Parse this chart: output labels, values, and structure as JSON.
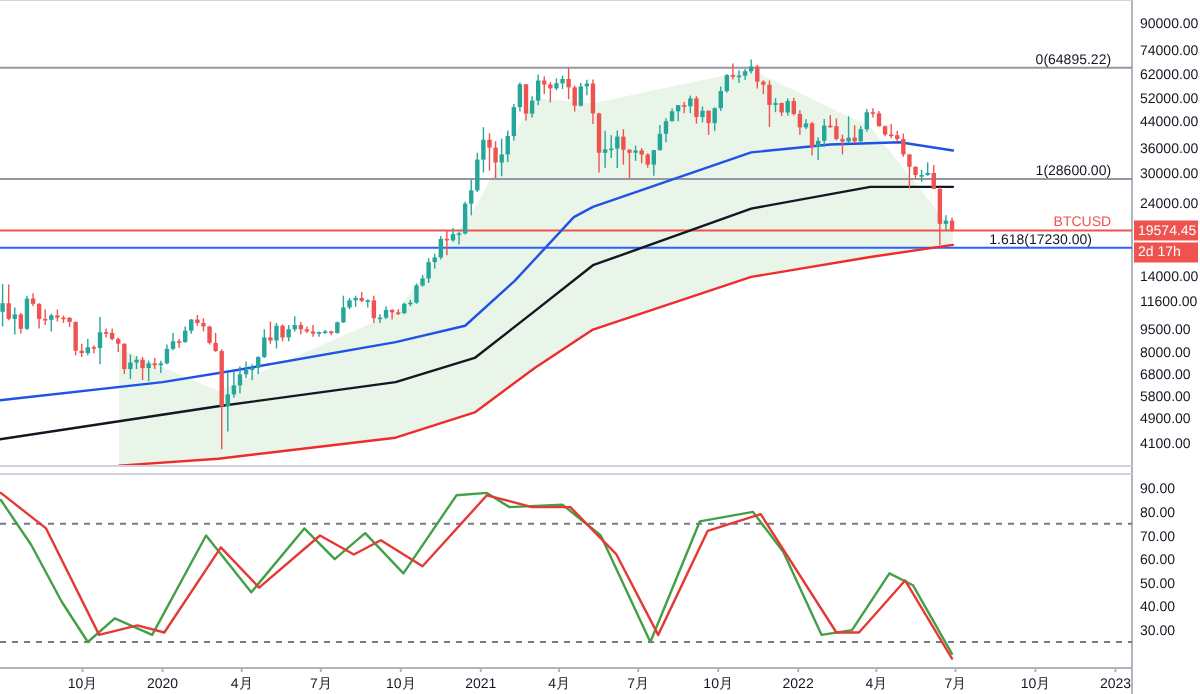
{
  "chart_data": [
    {
      "type": "candlestick",
      "log": true,
      "tick_labels": "y",
      "xlim": [
        "2019-06-28",
        "2023-01-20"
      ],
      "ylim": [
        3450,
        107000
      ],
      "yticks": [
        {
          "value": 90000,
          "label": "90000.00"
        },
        {
          "value": 74000,
          "label": "74000.00"
        },
        {
          "value": 62000,
          "label": "62000.00"
        },
        {
          "value": 52000,
          "label": "52000.00"
        },
        {
          "value": 44000,
          "label": "44000.00"
        },
        {
          "value": 36000,
          "label": "36000.00"
        },
        {
          "value": 30000,
          "label": "30000.00"
        },
        {
          "value": 24000,
          "label": "24000.00"
        },
        {
          "value": 14000,
          "label": "14000.00"
        },
        {
          "value": 11600,
          "label": "11600.00"
        },
        {
          "value": 9500,
          "label": "9500.00"
        },
        {
          "value": 8000,
          "label": "8000.00"
        },
        {
          "value": 6800,
          "label": "6800.00"
        },
        {
          "value": 5800,
          "label": "5800.00"
        },
        {
          "value": 4900,
          "label": "4900.00"
        },
        {
          "value": 4100,
          "label": "4100.00"
        }
      ],
      "x": [
        "2019-07-01",
        "2019-07-08",
        "2019-07-15",
        "2019-07-22",
        "2019-07-29",
        "2019-08-05",
        "2019-08-12",
        "2019-08-19",
        "2019-08-26",
        "2019-09-02",
        "2019-09-09",
        "2019-09-16",
        "2019-09-23",
        "2019-09-30",
        "2019-10-07",
        "2019-10-14",
        "2019-10-21",
        "2019-10-28",
        "2019-11-04",
        "2019-11-11",
        "2019-11-18",
        "2019-11-25",
        "2019-12-02",
        "2019-12-09",
        "2019-12-16",
        "2019-12-23",
        "2019-12-30",
        "2020-01-06",
        "2020-01-13",
        "2020-01-20",
        "2020-01-27",
        "2020-02-03",
        "2020-02-10",
        "2020-02-17",
        "2020-02-24",
        "2020-03-02",
        "2020-03-09",
        "2020-03-16",
        "2020-03-23",
        "2020-03-30",
        "2020-04-06",
        "2020-04-13",
        "2020-04-20",
        "2020-04-27",
        "2020-05-04",
        "2020-05-11",
        "2020-05-18",
        "2020-05-25",
        "2020-06-01",
        "2020-06-08",
        "2020-06-15",
        "2020-06-22",
        "2020-06-29",
        "2020-07-06",
        "2020-07-13",
        "2020-07-20",
        "2020-07-27",
        "2020-08-03",
        "2020-08-10",
        "2020-08-17",
        "2020-08-24",
        "2020-08-31",
        "2020-09-07",
        "2020-09-14",
        "2020-09-21",
        "2020-09-28",
        "2020-10-05",
        "2020-10-12",
        "2020-10-19",
        "2020-10-26",
        "2020-11-02",
        "2020-11-09",
        "2020-11-16",
        "2020-11-23",
        "2020-11-30",
        "2020-12-07",
        "2020-12-14",
        "2020-12-21",
        "2020-12-28",
        "2021-01-04",
        "2021-01-11",
        "2021-01-18",
        "2021-01-25",
        "2021-02-01",
        "2021-02-08",
        "2021-02-15",
        "2021-02-22",
        "2021-03-01",
        "2021-03-08",
        "2021-03-15",
        "2021-03-22",
        "2021-03-29",
        "2021-04-05",
        "2021-04-12",
        "2021-04-19",
        "2021-04-26",
        "2021-05-03",
        "2021-05-10",
        "2021-05-17",
        "2021-05-24",
        "2021-05-31",
        "2021-06-07",
        "2021-06-14",
        "2021-06-21",
        "2021-06-28",
        "2021-07-05",
        "2021-07-12",
        "2021-07-19",
        "2021-07-26",
        "2021-08-02",
        "2021-08-09",
        "2021-08-16",
        "2021-08-23",
        "2021-08-30",
        "2021-09-06",
        "2021-09-13",
        "2021-09-20",
        "2021-09-27",
        "2021-10-04",
        "2021-10-11",
        "2021-10-18",
        "2021-10-25",
        "2021-11-01",
        "2021-11-08",
        "2021-11-15",
        "2021-11-22",
        "2021-11-29",
        "2021-12-06",
        "2021-12-13",
        "2021-12-20",
        "2021-12-27",
        "2022-01-03",
        "2022-01-10",
        "2022-01-17",
        "2022-01-24",
        "2022-01-31",
        "2022-02-07",
        "2022-02-14",
        "2022-02-21",
        "2022-02-28",
        "2022-03-07",
        "2022-03-14",
        "2022-03-21",
        "2022-03-28",
        "2022-04-04",
        "2022-04-11",
        "2022-04-18",
        "2022-04-25",
        "2022-05-02",
        "2022-05-09",
        "2022-05-16",
        "2022-05-23",
        "2022-05-30",
        "2022-06-06",
        "2022-06-13",
        "2022-06-20",
        "2022-06-27"
      ],
      "ohlc": [
        [
          10750,
          13200,
          9650,
          11450
        ],
        [
          11450,
          13150,
          10100,
          10200
        ],
        [
          10200,
          11100,
          9100,
          10540
        ],
        [
          10540,
          10650,
          9160,
          9480
        ],
        [
          9480,
          12100,
          9400,
          11850
        ],
        [
          11850,
          12320,
          11200,
          11400
        ],
        [
          11400,
          11450,
          9500,
          10200
        ],
        [
          10200,
          10950,
          9750,
          10130
        ],
        [
          10130,
          10600,
          9300,
          10470
        ],
        [
          10470,
          10930,
          10000,
          10300
        ],
        [
          10300,
          10450,
          9900,
          10280
        ],
        [
          10280,
          10350,
          9600,
          9980
        ],
        [
          9980,
          10000,
          7800,
          8070
        ],
        [
          8070,
          8500,
          7700,
          7930
        ],
        [
          7930,
          8800,
          7800,
          8280
        ],
        [
          8280,
          8400,
          7900,
          8230
        ],
        [
          8230,
          10350,
          7300,
          9250
        ],
        [
          9250,
          9500,
          8900,
          9200
        ],
        [
          9200,
          9500,
          8700,
          8800
        ],
        [
          8800,
          8900,
          8000,
          8500
        ],
        [
          8500,
          8500,
          6800,
          7050
        ],
        [
          7050,
          7850,
          6550,
          7400
        ],
        [
          7400,
          7750,
          7050,
          7550
        ],
        [
          7550,
          7700,
          6500,
          7100
        ],
        [
          7100,
          7500,
          6450,
          7350
        ],
        [
          7350,
          7650,
          7050,
          7250
        ],
        [
          7250,
          7500,
          6850,
          7350
        ],
        [
          7350,
          8450,
          7300,
          8180
        ],
        [
          8180,
          9200,
          8100,
          8650
        ],
        [
          8650,
          8800,
          8250,
          8600
        ],
        [
          8600,
          9650,
          8550,
          9350
        ],
        [
          9350,
          10200,
          9150,
          10150
        ],
        [
          10150,
          10500,
          9700,
          9900
        ],
        [
          9900,
          10250,
          9300,
          9650
        ],
        [
          9650,
          9700,
          8450,
          8550
        ],
        [
          8550,
          9200,
          8000,
          8050
        ],
        [
          8050,
          8150,
          3900,
          5350
        ],
        [
          5350,
          6900,
          4450,
          5850
        ],
        [
          5850,
          6950,
          5700,
          6250
        ],
        [
          6250,
          7200,
          5900,
          6780
        ],
        [
          6780,
          7450,
          6600,
          7000
        ],
        [
          7000,
          7300,
          6500,
          7120
        ],
        [
          7120,
          7750,
          6800,
          7700
        ],
        [
          7700,
          9450,
          7650,
          8900
        ],
        [
          8900,
          10000,
          8500,
          8700
        ],
        [
          8700,
          9900,
          8200,
          9700
        ],
        [
          9700,
          9800,
          8650,
          8900
        ],
        [
          8900,
          9750,
          8650,
          9450
        ],
        [
          9450,
          10400,
          9300,
          9750
        ],
        [
          9750,
          9980,
          9100,
          9450
        ],
        [
          9450,
          9650,
          9200,
          9300
        ],
        [
          9300,
          9750,
          8950,
          9150
        ],
        [
          9150,
          9300,
          8950,
          9250
        ],
        [
          9250,
          9400,
          9150,
          9300
        ],
        [
          9300,
          9350,
          9050,
          9200
        ],
        [
          9200,
          10000,
          9150,
          9950
        ],
        [
          9950,
          12100,
          9900,
          11100
        ],
        [
          11100,
          11900,
          10950,
          11700
        ],
        [
          11700,
          12100,
          11150,
          11900
        ],
        [
          11900,
          12450,
          11550,
          11650
        ],
        [
          11650,
          11800,
          11100,
          11700
        ],
        [
          11700,
          12100,
          9900,
          10250
        ],
        [
          10250,
          10550,
          9900,
          10300
        ],
        [
          10300,
          11200,
          10200,
          10900
        ],
        [
          10900,
          10950,
          10150,
          10700
        ],
        [
          10700,
          10950,
          10500,
          10650
        ],
        [
          10650,
          11500,
          10550,
          11400
        ],
        [
          11400,
          11750,
          11200,
          11500
        ],
        [
          11500,
          13250,
          11400,
          13050
        ],
        [
          13050,
          14100,
          12950,
          13750
        ],
        [
          13750,
          15950,
          13300,
          15500
        ],
        [
          15500,
          16500,
          14800,
          16050
        ],
        [
          16050,
          18800,
          15800,
          18400
        ],
        [
          18400,
          19500,
          16300,
          18200
        ],
        [
          18200,
          19900,
          18000,
          19050
        ],
        [
          19050,
          19400,
          17650,
          19150
        ],
        [
          19150,
          24200,
          19000,
          23850
        ],
        [
          23850,
          28400,
          21900,
          26300
        ],
        [
          26300,
          34700,
          26000,
          33000
        ],
        [
          33000,
          41900,
          30000,
          38200
        ],
        [
          38200,
          40100,
          30400,
          36050
        ],
        [
          36050,
          37800,
          28800,
          32300
        ],
        [
          32300,
          38500,
          29200,
          34300
        ],
        [
          34300,
          40900,
          32400,
          39250
        ],
        [
          39250,
          49700,
          38000,
          48600
        ],
        [
          48600,
          58300,
          47000,
          57500
        ],
        [
          57500,
          57500,
          44000,
          46300
        ],
        [
          46300,
          52600,
          45000,
          51000
        ],
        [
          51000,
          61800,
          49300,
          59100
        ],
        [
          59100,
          61000,
          53500,
          57400
        ],
        [
          57400,
          58400,
          50300,
          55800
        ],
        [
          55800,
          60000,
          55000,
          57900
        ],
        [
          57900,
          61300,
          55500,
          59800
        ],
        [
          59800,
          64900,
          51500,
          56200
        ],
        [
          56200,
          57000,
          47000,
          49100
        ],
        [
          49100,
          58000,
          48800,
          56600
        ],
        [
          56600,
          59500,
          53000,
          57800
        ],
        [
          57800,
          59600,
          42900,
          46400
        ],
        [
          46400,
          46600,
          30000,
          34700
        ],
        [
          34700,
          40800,
          31100,
          35600
        ],
        [
          35600,
          39500,
          33400,
          35800
        ],
        [
          35800,
          40900,
          31000,
          39100
        ],
        [
          39100,
          41300,
          31800,
          35500
        ],
        [
          35500,
          35600,
          28800,
          34700
        ],
        [
          34700,
          36600,
          32700,
          35300
        ],
        [
          35300,
          35900,
          32100,
          34250
        ],
        [
          34250,
          34600,
          31100,
          31800
        ],
        [
          31800,
          35400,
          29300,
          35400
        ],
        [
          35400,
          42600,
          35200,
          39900
        ],
        [
          39900,
          44800,
          37500,
          43800
        ],
        [
          43800,
          48100,
          43700,
          47100
        ],
        [
          47100,
          49300,
          43800,
          49300
        ],
        [
          49300,
          50500,
          46400,
          48900
        ],
        [
          48900,
          52900,
          46500,
          51800
        ],
        [
          51800,
          52700,
          43000,
          45200
        ],
        [
          45200,
          48800,
          43400,
          47300
        ],
        [
          47300,
          47400,
          39600,
          43200
        ],
        [
          43200,
          48500,
          40800,
          48200
        ],
        [
          48200,
          56600,
          47200,
          54700
        ],
        [
          54700,
          62000,
          54000,
          61500
        ],
        [
          61500,
          67000,
          59600,
          60850
        ],
        [
          60850,
          63700,
          58000,
          61300
        ],
        [
          61300,
          64300,
          59400,
          63300
        ],
        [
          63300,
          69000,
          62300,
          65500
        ],
        [
          65500,
          66300,
          55700,
          58600
        ],
        [
          58600,
          59200,
          53500,
          57300
        ],
        [
          57300,
          59100,
          42000,
          49400
        ],
        [
          49400,
          51900,
          46800,
          50100
        ],
        [
          50100,
          50200,
          45500,
          46700
        ],
        [
          46700,
          51900,
          45600,
          50800
        ],
        [
          50800,
          52100,
          45700,
          46200
        ],
        [
          46200,
          47500,
          39650,
          41850
        ],
        [
          41850,
          44400,
          41300,
          43100
        ],
        [
          43100,
          43500,
          34000,
          36300
        ],
        [
          36300,
          38900,
          32900,
          37900
        ],
        [
          37900,
          44500,
          36300,
          42400
        ],
        [
          42400,
          45800,
          41700,
          42200
        ],
        [
          42200,
          44700,
          38000,
          38400
        ],
        [
          38400,
          39700,
          34300,
          37700
        ],
        [
          37700,
          45400,
          37200,
          38800
        ],
        [
          38800,
          42500,
          37200,
          37800
        ],
        [
          37800,
          42300,
          37600,
          41300
        ],
        [
          41300,
          47900,
          40500,
          46800
        ],
        [
          46800,
          48200,
          45000,
          46400
        ],
        [
          46400,
          47200,
          42100,
          42200
        ],
        [
          42200,
          42400,
          39200,
          39700
        ],
        [
          39700,
          42900,
          38600,
          39500
        ],
        [
          39500,
          40800,
          37600,
          38400
        ],
        [
          38400,
          40000,
          33700,
          34300
        ],
        [
          34300,
          34300,
          26700,
          31300
        ],
        [
          31300,
          31400,
          28700,
          29450
        ],
        [
          29450,
          30600,
          28000,
          29450
        ],
        [
          29450,
          32350,
          29300,
          29900
        ],
        [
          29900,
          31700,
          26550,
          26600
        ],
        [
          26600,
          26900,
          17600,
          20550
        ],
        [
          20550,
          21900,
          19650,
          21050
        ],
        [
          21050,
          21550,
          19400,
          19574.45
        ]
      ],
      "series": [
        {
          "type": "line",
          "color": "#ef2b2b",
          "x": [
            "2019-11-12",
            "2020-03-05",
            "2020-09-25",
            "2020-12-25",
            "2021-03-04",
            "2021-05-10",
            "2021-11-08",
            "2022-03-25",
            "2022-06-28"
          ],
          "values": [
            3460,
            3640,
            4250,
            5120,
            7100,
            9430,
            13900,
            16100,
            17600
          ],
          "lower": [
            3460,
            3640,
            4250,
            5120,
            7100,
            9430,
            13900,
            16100,
            17600
          ],
          "upper": [
            8200,
            6000,
            10700,
            23000,
            52000,
            50000,
            64000,
            42000,
            19574.45
          ]
        },
        {
          "type": "line",
          "color": "#131722",
          "x": [
            "2019-06-28",
            "2020-03-05",
            "2020-09-25",
            "2020-12-25",
            "2021-03-04",
            "2021-05-10",
            "2021-11-08",
            "2022-03-25",
            "2022-06-28"
          ],
          "values": [
            4200,
            5360,
            6400,
            7650,
            10800,
            15150,
            23000,
            27000,
            27000
          ]
        },
        {
          "type": "line",
          "color": "#1e53e5",
          "x": [
            "2019-06-28",
            "2020-01-01",
            "2020-03-27",
            "2020-09-25",
            "2020-12-14",
            "2021-02-09",
            "2021-04-18",
            "2021-05-10",
            "2021-11-08",
            "2022-02-07",
            "2022-04-28",
            "2022-06-28"
          ],
          "values": [
            5600,
            6400,
            7000,
            8600,
            9700,
            13500,
            21600,
            23300,
            34800,
            36900,
            37500,
            35300
          ]
        }
      ],
      "ref_lines": [
        {
          "axis": "y",
          "value": 64895.22,
          "color": "#9598a1"
        },
        {
          "axis": "y",
          "value": 28600,
          "color": "#9598a1"
        },
        {
          "axis": "y",
          "value": 17230,
          "color": "#2962ff"
        },
        {
          "axis": "y",
          "value": 19574.45,
          "label": "19574.45",
          "color": "#ef5350"
        }
      ],
      "annotations": [
        {
          "text": "0(64895.22)",
          "x": "2022-12-27",
          "y": 64895.22
        },
        {
          "text": "1(28600.00)",
          "x": "2022-12-27",
          "y": 28600
        },
        {
          "text": "1.618(17230.00)",
          "x": "2022-12-05",
          "y": 17230
        },
        {
          "text": "BTCUSD",
          "x": "2022-12-27",
          "y": 19574.45
        },
        "2d 17h"
      ]
    },
    {
      "type": "line",
      "xlim": [
        "2019-06-28",
        "2023-01-20"
      ],
      "ylim": [
        14,
        96
      ],
      "yticks": [
        {
          "value": 90,
          "label": "90.00"
        },
        {
          "value": 80,
          "label": "80.00"
        },
        {
          "value": 70,
          "label": "70.00"
        },
        {
          "value": 60,
          "label": "60.00"
        },
        {
          "value": 50,
          "label": "50.00"
        },
        {
          "value": 40,
          "label": "40.00"
        },
        {
          "value": 30,
          "label": "30.00"
        }
      ],
      "xticks": [
        {
          "value": "2019-10-01",
          "label": "10月"
        },
        {
          "value": "2020-01-01",
          "label": "2020"
        },
        {
          "value": "2020-04-01",
          "label": "4月"
        },
        {
          "value": "2020-07-01",
          "label": "7月"
        },
        {
          "value": "2020-10-01",
          "label": "10月"
        },
        {
          "value": "2021-01-01",
          "label": "2021"
        },
        {
          "value": "2021-04-01",
          "label": "4月"
        },
        {
          "value": "2021-07-01",
          "label": "7月"
        },
        {
          "value": "2021-10-01",
          "label": "10月"
        },
        {
          "value": "2022-01-01",
          "label": "2022"
        },
        {
          "value": "2022-04-01",
          "label": "4月"
        },
        {
          "value": "2022-07-01",
          "label": "7月"
        },
        {
          "value": "2022-10-01",
          "label": "10月"
        },
        {
          "value": "2023-01-01",
          "label": "2023"
        }
      ],
      "series": [
        {
          "color": "#43a047",
          "x": [
            "2019-06-29",
            "2019-08-03",
            "2019-09-07",
            "2019-10-07",
            "2019-11-07",
            "2019-12-20",
            "2020-02-20",
            "2020-04-12",
            "2020-06-12",
            "2020-07-17",
            "2020-08-21",
            "2020-10-04",
            "2020-12-04",
            "2021-01-08",
            "2021-02-03",
            "2021-04-05",
            "2021-05-19",
            "2021-07-15",
            "2021-09-10",
            "2021-11-10",
            "2021-12-15",
            "2022-01-28",
            "2022-03-04",
            "2022-04-16",
            "2022-05-13",
            "2022-06-27"
          ],
          "values": [
            85,
            66,
            42,
            25,
            35,
            28,
            70,
            46,
            73,
            60,
            71,
            54,
            87,
            88,
            82,
            83,
            70,
            25,
            76,
            80,
            63,
            28,
            30,
            54,
            49,
            20
          ]
        },
        {
          "color": "#e53935",
          "x": [
            "2019-06-29",
            "2019-08-20",
            "2019-10-20",
            "2019-12-03",
            "2020-01-03",
            "2020-03-08",
            "2020-04-21",
            "2020-06-30",
            "2020-08-08",
            "2020-09-08",
            "2020-10-26",
            "2021-01-08",
            "2021-03-01",
            "2021-04-14",
            "2021-06-06",
            "2021-07-24",
            "2021-09-19",
            "2021-11-19",
            "2022-02-14",
            "2022-03-12",
            "2022-05-04",
            "2022-06-27"
          ],
          "values": [
            88,
            73,
            28,
            32,
            29,
            65,
            48,
            70,
            62,
            68,
            57,
            87,
            82,
            82,
            62,
            28,
            72,
            79,
            29,
            29,
            51,
            18
          ]
        }
      ],
      "ref_lines": [
        {
          "axis": "y",
          "value": 75,
          "color": "#787b86",
          "line_style": "dashed"
        },
        {
          "axis": "y",
          "value": 25,
          "color": "#787b86",
          "line_style": "dashed"
        }
      ]
    }
  ]
}
